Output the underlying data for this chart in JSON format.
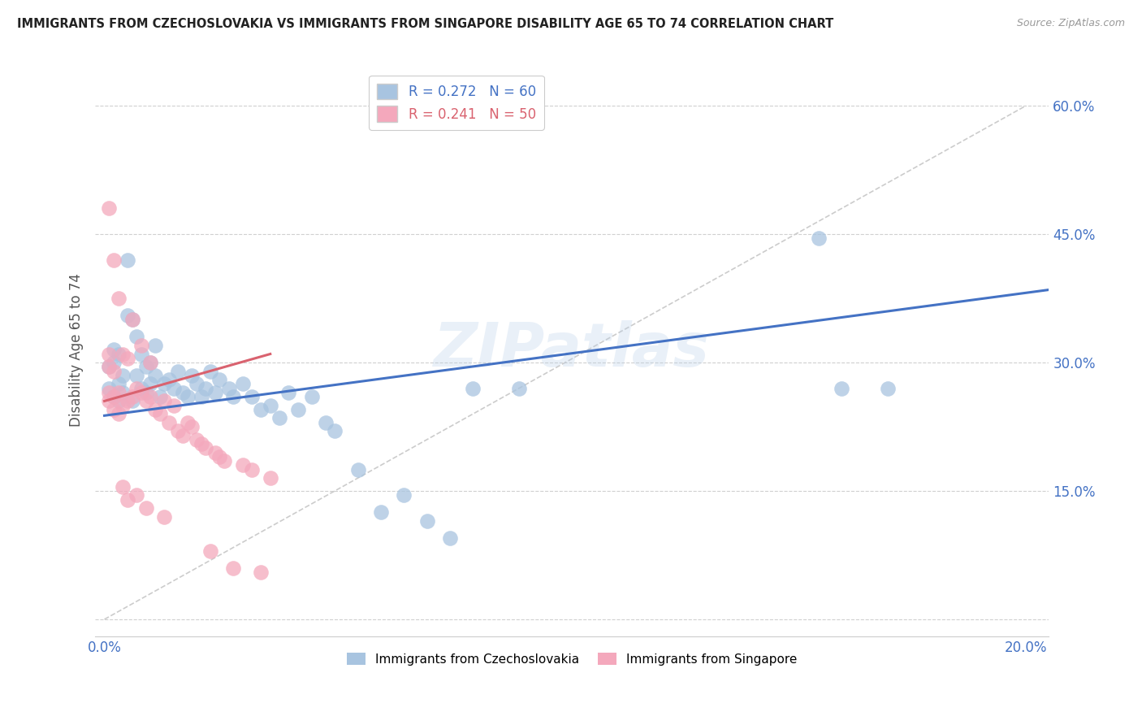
{
  "title": "IMMIGRANTS FROM CZECHOSLOVAKIA VS IMMIGRANTS FROM SINGAPORE DISABILITY AGE 65 TO 74 CORRELATION CHART",
  "source": "Source: ZipAtlas.com",
  "ylabel_label": "Disability Age 65 to 74",
  "xlim": [
    -0.002,
    0.205
  ],
  "ylim": [
    -0.02,
    0.65
  ],
  "x_ticks": [
    0.0,
    0.04,
    0.08,
    0.12,
    0.16,
    0.2
  ],
  "y_ticks": [
    0.0,
    0.15,
    0.3,
    0.45,
    0.6
  ],
  "czechoslovakia_color": "#a8c4e0",
  "singapore_color": "#f4a8bc",
  "trendline_czechoslovakia_color": "#4472c4",
  "trendline_singapore_color": "#d9626f",
  "trendline_diag_color": "#cccccc",
  "R_czechoslovakia": 0.272,
  "N_czechoslovakia": 60,
  "R_singapore": 0.241,
  "N_singapore": 50,
  "background_color": "#ffffff",
  "grid_color": "#d0d0d0",
  "watermark": "ZIPatlas",
  "legend_label_czechoslovakia": "Immigrants from Czechoslovakia",
  "legend_label_singapore": "Immigrants from Singapore",
  "czechoslovakia_x": [
    0.001,
    0.001,
    0.002,
    0.002,
    0.002,
    0.003,
    0.003,
    0.003,
    0.004,
    0.004,
    0.005,
    0.005,
    0.006,
    0.006,
    0.007,
    0.007,
    0.008,
    0.008,
    0.009,
    0.009,
    0.01,
    0.01,
    0.011,
    0.011,
    0.012,
    0.013,
    0.014,
    0.015,
    0.016,
    0.017,
    0.018,
    0.019,
    0.02,
    0.021,
    0.022,
    0.023,
    0.024,
    0.025,
    0.027,
    0.028,
    0.03,
    0.032,
    0.034,
    0.036,
    0.038,
    0.04,
    0.042,
    0.045,
    0.048,
    0.05,
    0.055,
    0.06,
    0.065,
    0.07,
    0.075,
    0.08,
    0.09,
    0.155,
    0.16,
    0.17
  ],
  "czechoslovakia_y": [
    0.27,
    0.295,
    0.26,
    0.3,
    0.315,
    0.255,
    0.275,
    0.31,
    0.265,
    0.285,
    0.42,
    0.355,
    0.35,
    0.255,
    0.285,
    0.33,
    0.27,
    0.31,
    0.265,
    0.295,
    0.275,
    0.3,
    0.285,
    0.32,
    0.26,
    0.275,
    0.28,
    0.27,
    0.29,
    0.265,
    0.26,
    0.285,
    0.275,
    0.26,
    0.27,
    0.29,
    0.265,
    0.28,
    0.27,
    0.26,
    0.275,
    0.26,
    0.245,
    0.25,
    0.235,
    0.265,
    0.245,
    0.26,
    0.23,
    0.22,
    0.175,
    0.125,
    0.145,
    0.115,
    0.095,
    0.27,
    0.27,
    0.445,
    0.27,
    0.27
  ],
  "singapore_x": [
    0.001,
    0.001,
    0.001,
    0.001,
    0.001,
    0.002,
    0.002,
    0.002,
    0.002,
    0.003,
    0.003,
    0.003,
    0.004,
    0.004,
    0.004,
    0.005,
    0.005,
    0.005,
    0.006,
    0.006,
    0.007,
    0.007,
    0.008,
    0.008,
    0.009,
    0.009,
    0.01,
    0.01,
    0.011,
    0.012,
    0.013,
    0.013,
    0.014,
    0.015,
    0.016,
    0.017,
    0.018,
    0.019,
    0.02,
    0.021,
    0.022,
    0.023,
    0.024,
    0.025,
    0.026,
    0.028,
    0.03,
    0.032,
    0.034,
    0.036
  ],
  "singapore_y": [
    0.265,
    0.295,
    0.31,
    0.48,
    0.255,
    0.26,
    0.29,
    0.42,
    0.245,
    0.24,
    0.375,
    0.265,
    0.25,
    0.31,
    0.155,
    0.255,
    0.305,
    0.14,
    0.26,
    0.35,
    0.27,
    0.145,
    0.265,
    0.32,
    0.255,
    0.13,
    0.26,
    0.3,
    0.245,
    0.24,
    0.255,
    0.12,
    0.23,
    0.25,
    0.22,
    0.215,
    0.23,
    0.225,
    0.21,
    0.205,
    0.2,
    0.08,
    0.195,
    0.19,
    0.185,
    0.06,
    0.18,
    0.175,
    0.055,
    0.165
  ],
  "cz_trend_x": [
    0.0,
    0.205
  ],
  "cz_trend_y": [
    0.238,
    0.385
  ],
  "sg_trend_x": [
    0.0,
    0.036
  ],
  "sg_trend_y": [
    0.255,
    0.31
  ]
}
